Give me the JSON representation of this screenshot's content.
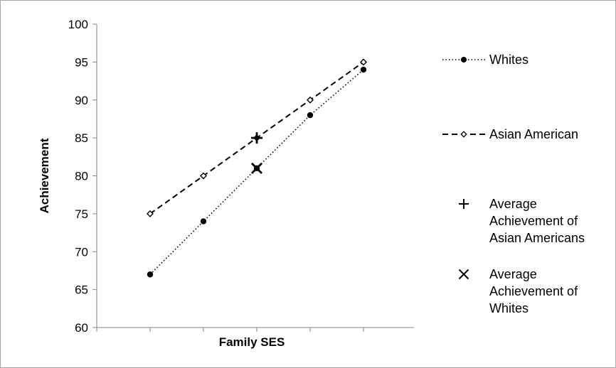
{
  "chart_data": {
    "type": "line",
    "xlabel": "Family SES",
    "ylabel": "Achievement",
    "ylim": [
      60,
      100
    ],
    "yticks": [
      60,
      65,
      70,
      75,
      80,
      85,
      90,
      95,
      100
    ],
    "x": [
      1,
      2,
      3,
      4,
      5
    ],
    "grid": false,
    "legend_position": "right",
    "series": [
      {
        "name": "Whites",
        "values": [
          67,
          74,
          81,
          88,
          94
        ],
        "line_style": "dotted",
        "marker": "filled-circle",
        "color": "#000000"
      },
      {
        "name": "Asian American",
        "values": [
          75,
          80,
          85,
          90,
          95
        ],
        "line_style": "dashed",
        "marker": "open-diamond",
        "color": "#000000"
      }
    ],
    "points": [
      {
        "name": "Average Achievement of Asian Americans",
        "x": 3,
        "y": 85,
        "marker": "plus"
      },
      {
        "name": "Average Achievement of Whites",
        "x": 3,
        "y": 81,
        "marker": "cross"
      }
    ],
    "legend": [
      {
        "lines": [
          "Whites"
        ],
        "symbol": "dotted-circle"
      },
      {
        "lines": [
          "Asian American"
        ],
        "symbol": "dashed-diamond"
      },
      {
        "lines": [
          "Average",
          "Achievement of",
          "Asian Americans"
        ],
        "symbol": "plus"
      },
      {
        "lines": [
          "Average",
          "Achievement of",
          "Whites"
        ],
        "symbol": "cross"
      }
    ]
  }
}
